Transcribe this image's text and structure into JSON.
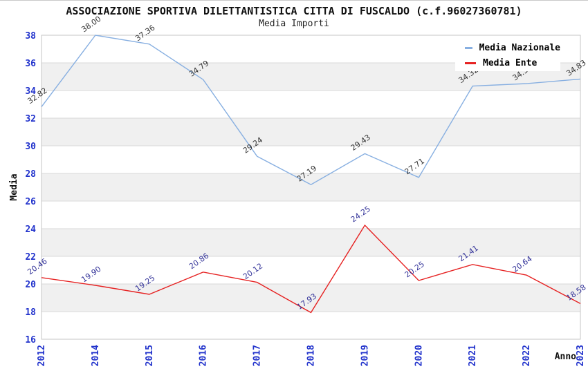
{
  "title": "ASSOCIAZIONE SPORTIVA DILETTANTISTICA CITTA DI FUSCALDO (c.f.96027360781)",
  "subtitle": "Media Importi",
  "legend": {
    "position": "top-right",
    "items": [
      {
        "label": "Media Nazionale",
        "color": "#87afe1"
      },
      {
        "label": "Media Ente",
        "color": "#e62222"
      }
    ]
  },
  "axes": {
    "y_title": "Media",
    "x_title": "Anno",
    "y_ticks": [
      "38",
      "36",
      "34",
      "32",
      "30",
      "28",
      "26",
      "24",
      "22",
      "20",
      "18",
      "16"
    ],
    "x_ticks": [
      "2012",
      "2014",
      "2015",
      "2016",
      "2017",
      "2018",
      "2019",
      "2020",
      "2021",
      "2022",
      "2023"
    ],
    "tick_color": "#2233cc"
  },
  "chart_data": {
    "type": "line",
    "title": "Media Importi",
    "xlabel": "Anno",
    "ylabel": "Media",
    "x": [
      "2012",
      "2014",
      "2015",
      "2016",
      "2017",
      "2018",
      "2019",
      "2020",
      "2021",
      "2022",
      "2023"
    ],
    "ylim": [
      16,
      38
    ],
    "ytick_step": 2,
    "grid": "horizontal-bands-alternating",
    "band_color": "#f0f0f0",
    "gridline_color": "#d9d9d9",
    "border_color": "#c6c6c6",
    "legend_position": "top-right-inside",
    "series": [
      {
        "name": "Media Nazionale",
        "color": "#87afe1",
        "label_color": "#333333",
        "values": [
          32.82,
          38.0,
          37.36,
          34.79,
          29.24,
          27.19,
          29.43,
          27.71,
          34.32,
          34.5,
          34.83
        ]
      },
      {
        "name": "Media Ente",
        "color": "#e62222",
        "label_color": "#333399",
        "values": [
          20.46,
          19.9,
          19.25,
          20.86,
          20.12,
          17.93,
          24.25,
          20.25,
          21.41,
          20.64,
          18.58
        ]
      }
    ]
  }
}
